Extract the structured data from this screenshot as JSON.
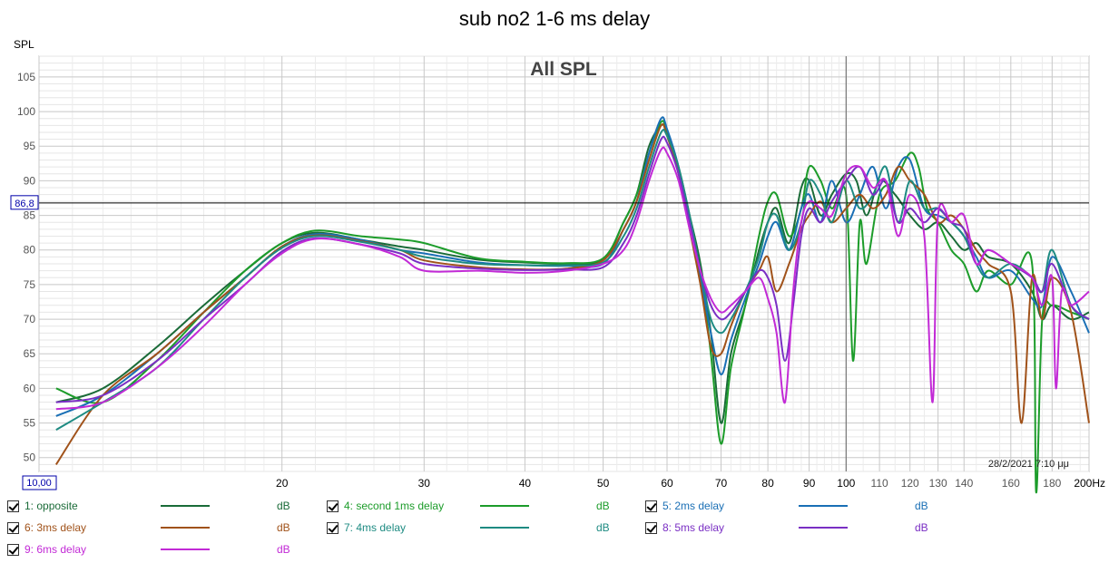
{
  "chart_data": {
    "type": "line",
    "title": "sub no2 1-6 ms delay",
    "inner_title": "All SPL",
    "ylabel": "SPL",
    "xlabel_unit": "Hz",
    "x_scale": "log",
    "xlim": [
      10,
      200
    ],
    "ylim": [
      48,
      108
    ],
    "grid": true,
    "y_ticks": [
      50,
      55,
      60,
      65,
      70,
      75,
      80,
      85,
      90,
      95,
      100,
      105
    ],
    "y_tick_labels": [
      "50",
      "55",
      "60",
      "65",
      "70",
      "75",
      "80",
      "85",
      "90",
      "95",
      "100",
      "105"
    ],
    "x_ticks": [
      10,
      20,
      30,
      40,
      50,
      60,
      70,
      80,
      90,
      100,
      110,
      120,
      130,
      140,
      160,
      180,
      200
    ],
    "x_tick_labels": [
      "10,00",
      "20",
      "30",
      "40",
      "50",
      "60",
      "70",
      "80",
      "90",
      "100",
      "110",
      "120",
      "130",
      "140",
      "160",
      "180",
      "200Hz"
    ],
    "cursor": {
      "y": 86.8,
      "label": "86,8",
      "x": 100
    },
    "timestamp": "28/2/2021 7:10 μμ",
    "series": [
      {
        "name": "1: opposite",
        "color": "#1a6b38",
        "x": [
          10.5,
          12,
          14,
          16,
          18,
          20,
          22,
          25,
          28,
          30,
          35,
          40,
          45,
          50,
          53,
          55,
          57,
          59,
          60,
          62,
          64,
          66,
          68,
          70,
          72,
          75,
          78,
          80,
          82,
          85,
          88,
          90,
          93,
          96,
          100,
          103,
          106,
          110,
          115,
          120,
          125,
          130,
          135,
          140,
          145,
          150,
          160,
          170,
          175,
          180,
          190,
          200
        ],
        "y": [
          58,
          60,
          66,
          72,
          77,
          81,
          82.5,
          81.5,
          80.5,
          80,
          78.6,
          78.2,
          78,
          78.6,
          84,
          88,
          95,
          98,
          97,
          92,
          85,
          78,
          68,
          55,
          65,
          72,
          80,
          84,
          86,
          81,
          89,
          90,
          85,
          88,
          91,
          90,
          85,
          90,
          88,
          85,
          83,
          84,
          82,
          80,
          81,
          79,
          78,
          74,
          70,
          72,
          70,
          71
        ]
      },
      {
        "name": "4: second 1ms delay",
        "color": "#1c9c2a",
        "x": [
          10.5,
          12,
          14,
          16,
          18,
          20,
          22,
          25,
          28,
          30,
          35,
          40,
          45,
          50,
          53,
          55,
          57,
          59,
          60,
          62,
          64,
          66,
          68,
          70,
          72,
          75,
          78,
          80,
          82,
          85,
          88,
          90,
          93,
          96,
          100,
          102,
          104,
          106,
          110,
          115,
          120,
          123,
          126,
          130,
          135,
          140,
          145,
          150,
          160,
          170,
          172,
          175,
          180,
          190,
          200
        ],
        "y": [
          60,
          58,
          64,
          71,
          77,
          81,
          82.8,
          82,
          81.5,
          81,
          78.8,
          78.3,
          78.1,
          78.8,
          84,
          88,
          94,
          98.5,
          97,
          91,
          84,
          77,
          65,
          52,
          63,
          72,
          82,
          87,
          88,
          82,
          86,
          92,
          90,
          86,
          88,
          64,
          84,
          78,
          88,
          90,
          94,
          92,
          86,
          84,
          80,
          78,
          74,
          77,
          75,
          78,
          45,
          70,
          72,
          71,
          70
        ]
      },
      {
        "name": "5: 2ms delay",
        "color": "#1a6fb5",
        "x": [
          10.5,
          12,
          14,
          16,
          18,
          20,
          22,
          25,
          28,
          30,
          35,
          40,
          45,
          50,
          53,
          55,
          57,
          59,
          60,
          62,
          64,
          66,
          68,
          70,
          72,
          75,
          78,
          80,
          82,
          85,
          88,
          90,
          93,
          96,
          100,
          104,
          108,
          112,
          116,
          120,
          125,
          130,
          135,
          140,
          145,
          150,
          160,
          170,
          175,
          180,
          190,
          200
        ],
        "y": [
          56,
          59,
          65,
          71,
          76,
          80.5,
          82.3,
          81.5,
          80,
          79.5,
          78.2,
          77.8,
          77.7,
          78,
          83,
          87,
          94,
          99,
          97.5,
          92,
          84,
          76,
          68,
          62,
          67,
          73,
          78,
          82,
          84,
          80,
          86,
          88,
          84,
          90,
          84,
          88,
          92,
          86,
          92,
          93,
          86,
          85,
          84,
          82,
          79,
          76,
          77,
          73,
          72,
          79,
          74,
          68
        ]
      },
      {
        "name": "6: 3ms delay",
        "color": "#a0521a",
        "x": [
          10.5,
          12,
          14,
          16,
          18,
          20,
          22,
          25,
          28,
          30,
          35,
          40,
          45,
          50,
          53,
          55,
          57,
          59,
          60,
          62,
          64,
          66,
          68,
          70,
          72,
          75,
          78,
          80,
          82,
          85,
          88,
          90,
          93,
          96,
          100,
          104,
          108,
          112,
          116,
          120,
          125,
          130,
          135,
          140,
          145,
          150,
          160,
          165,
          170,
          175,
          180,
          190,
          200
        ],
        "y": [
          49,
          59,
          65,
          71,
          76,
          80.5,
          82.1,
          81.3,
          80,
          78.5,
          77.5,
          77.2,
          77.3,
          78.5,
          83,
          87,
          93,
          98,
          96.5,
          91,
          83,
          75,
          66,
          65,
          69,
          74,
          77,
          79,
          74,
          78,
          83,
          85,
          87,
          84,
          86,
          88,
          86,
          88,
          92,
          90,
          88,
          84,
          85,
          83,
          80,
          78,
          74,
          55,
          76,
          70,
          76,
          71,
          55
        ]
      },
      {
        "name": "7: 4ms delay",
        "color": "#1e8b82",
        "x": [
          10.5,
          12,
          14,
          16,
          18,
          20,
          22,
          25,
          28,
          30,
          35,
          40,
          45,
          50,
          53,
          55,
          57,
          59,
          60,
          62,
          64,
          66,
          68,
          70,
          72,
          75,
          78,
          80,
          82,
          85,
          88,
          90,
          93,
          96,
          100,
          104,
          108,
          112,
          116,
          120,
          125,
          130,
          135,
          140,
          145,
          150,
          160,
          170,
          175,
          180,
          190,
          200
        ],
        "y": [
          54,
          58,
          63,
          70,
          76,
          80.3,
          82,
          81.2,
          80,
          79,
          78,
          77.8,
          77.8,
          78.2,
          82,
          86,
          92,
          97,
          96.5,
          92,
          85,
          77,
          70,
          68,
          70,
          74,
          79,
          84,
          85,
          80,
          84,
          90,
          88,
          84,
          90,
          86,
          88,
          92,
          84,
          90,
          86,
          86,
          84,
          82,
          78,
          76,
          78,
          76,
          74,
          80,
          72,
          70
        ]
      },
      {
        "name": "8: 5ms delay",
        "color": "#7a2fc4",
        "x": [
          10.5,
          12,
          14,
          16,
          18,
          20,
          22,
          25,
          28,
          30,
          35,
          40,
          45,
          50,
          53,
          55,
          57,
          59,
          60,
          62,
          64,
          66,
          68,
          70,
          72,
          75,
          78,
          80,
          82,
          84,
          86,
          88,
          90,
          93,
          96,
          100,
          104,
          108,
          112,
          116,
          120,
          125,
          130,
          135,
          140,
          145,
          150,
          160,
          170,
          175,
          180,
          190,
          200
        ],
        "y": [
          58,
          59,
          64,
          70,
          75,
          79.8,
          81.7,
          80.8,
          79.5,
          78,
          77.3,
          77.1,
          77.2,
          77.5,
          81,
          85,
          91,
          96,
          95.5,
          91,
          84,
          77,
          72,
          70,
          71,
          74,
          77,
          76,
          72,
          64,
          72,
          82,
          86,
          84,
          87,
          90,
          92,
          88,
          90,
          84,
          86,
          84,
          86,
          84,
          83,
          78,
          80,
          78,
          76,
          74,
          78,
          72,
          70
        ]
      },
      {
        "name": "9: 6ms delay",
        "color": "#c22ad6",
        "x": [
          10.5,
          12,
          14,
          16,
          18,
          20,
          22,
          25,
          28,
          30,
          35,
          40,
          45,
          50,
          53,
          55,
          57,
          59,
          60,
          62,
          64,
          66,
          68,
          70,
          72,
          75,
          78,
          80,
          82,
          84,
          86,
          88,
          90,
          93,
          96,
          100,
          104,
          108,
          112,
          116,
          120,
          125,
          128,
          130,
          135,
          140,
          145,
          150,
          160,
          170,
          175,
          180,
          182,
          185,
          190,
          200
        ],
        "y": [
          57,
          58,
          63,
          69,
          75,
          79.5,
          81.6,
          80.8,
          79,
          77,
          77,
          76.7,
          77,
          78,
          80,
          84,
          90,
          94.5,
          94,
          90,
          83,
          77,
          73,
          71,
          72,
          74,
          76,
          73,
          68,
          58,
          74,
          84,
          87,
          86,
          85,
          91,
          92,
          89,
          90,
          82,
          88,
          82,
          58,
          85,
          84,
          85,
          78,
          80,
          78,
          76,
          72,
          76,
          60,
          74,
          72,
          74
        ]
      }
    ],
    "legend": [
      {
        "label": "1: opposite",
        "unit": "dB",
        "color": "#1a6b38"
      },
      {
        "label": "4: second 1ms delay",
        "unit": "dB",
        "color": "#1c9c2a"
      },
      {
        "label": "5: 2ms delay",
        "unit": "dB",
        "color": "#1a6fb5"
      },
      {
        "label": "6: 3ms delay",
        "unit": "dB",
        "color": "#a0521a"
      },
      {
        "label": "7: 4ms delay",
        "unit": "dB",
        "color": "#1e8b82"
      },
      {
        "label": "8: 5ms delay",
        "unit": "dB",
        "color": "#7a2fc4"
      },
      {
        "label": "9: 6ms delay",
        "unit": "dB",
        "color": "#c22ad6"
      }
    ]
  }
}
